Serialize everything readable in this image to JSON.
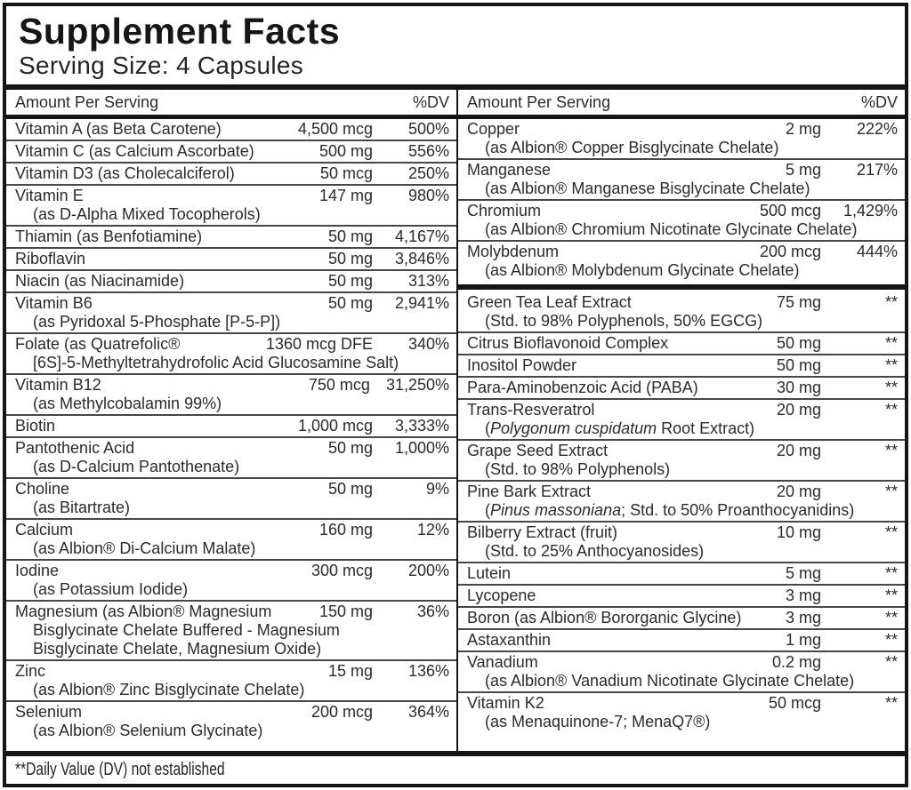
{
  "title": "Supplement Facts",
  "serving_size": "Serving Size: 4 Capsules",
  "column_header": {
    "amount": "Amount Per Serving",
    "dv": "%DV"
  },
  "footnote": "**Daily Value (DV) not established",
  "colors": {
    "border": "#151515",
    "text": "#2b2b2b",
    "separator": "#474747",
    "background": "#ffffff"
  },
  "columns": [
    {
      "rows": [
        {
          "name": "Vitamin A (as Beta Carotene)",
          "amount": "4,500 mcg",
          "dv": "500%"
        },
        {
          "name": "Vitamin C (as Calcium Ascorbate)",
          "amount": "500 mg",
          "dv": "556%"
        },
        {
          "name": "Vitamin D3 (as Cholecalciferol)",
          "amount": "50 mcg",
          "dv": "250%"
        },
        {
          "name": "Vitamin E",
          "amount": "147 mg",
          "dv": "980%",
          "sub": [
            [
              {
                "text": "(as D-Alpha Mixed Tocopherols)"
              }
            ]
          ]
        },
        {
          "name": "Thiamin (as Benfotiamine)",
          "amount": "50 mg",
          "dv": "4,167%"
        },
        {
          "name": "Riboflavin",
          "amount": "50 mg",
          "dv": "3,846%"
        },
        {
          "name": "Niacin (as Niacinamide)",
          "amount": "50 mg",
          "dv": "313%"
        },
        {
          "name": "Vitamin B6",
          "amount": "50 mg",
          "dv": "2,941%",
          "sub": [
            [
              {
                "text": "(as Pyridoxal 5-Phosphate [P-5-P])"
              }
            ]
          ]
        },
        {
          "name": "Folate (as Quatrefolic®",
          "amount": "1360 mcg DFE",
          "dv": "340%",
          "sub": [
            [
              {
                "text": "[6S]-5-Methyltetrahydrofolic Acid Glucosamine Salt)"
              }
            ]
          ]
        },
        {
          "name": "Vitamin B12",
          "amount": "750 mcg",
          "dv": "31,250%",
          "sub": [
            [
              {
                "text": "(as Methylcobalamin 99%)"
              }
            ]
          ]
        },
        {
          "name": "Biotin",
          "amount": "1,000 mcg",
          "dv": "3,333%"
        },
        {
          "name": "Pantothenic Acid",
          "amount": "50 mg",
          "dv": "1,000%",
          "sub": [
            [
              {
                "text": "(as D-Calcium Pantothenate)"
              }
            ]
          ]
        },
        {
          "name": "Choline",
          "amount": "50 mg",
          "dv": "9%",
          "sub": [
            [
              {
                "text": "(as Bitartrate)"
              }
            ]
          ]
        },
        {
          "name": "Calcium",
          "amount": "160 mg",
          "dv": "12%",
          "sub": [
            [
              {
                "text": "(as Albion® Di-Calcium Malate)"
              }
            ]
          ]
        },
        {
          "name": "Iodine",
          "amount": "300 mcg",
          "dv": "200%",
          "sub": [
            [
              {
                "text": "(as Potassium Iodide)"
              }
            ]
          ]
        },
        {
          "name": "Magnesium (as Albion® Magnesium",
          "amount": "150 mg",
          "dv": "36%",
          "sub": [
            [
              {
                "text": "Bisglycinate Chelate Buffered - Magnesium"
              }
            ],
            [
              {
                "text": "Bisglycinate Chelate, Magnesium Oxide)"
              }
            ]
          ]
        },
        {
          "name": "Zinc",
          "amount": "15 mg",
          "dv": "136%",
          "sub": [
            [
              {
                "text": "(as Albion® Zinc Bisglycinate Chelate)"
              }
            ]
          ]
        },
        {
          "name": "Selenium",
          "amount": "200 mcg",
          "dv": "364%",
          "sub": [
            [
              {
                "text": "(as Albion® Selenium Glycinate)"
              }
            ]
          ]
        }
      ]
    },
    {
      "rows": [
        {
          "name": "Copper",
          "amount": "2 mg",
          "dv": "222%",
          "sub": [
            [
              {
                "text": "(as Albion® Copper Bisglycinate Chelate)"
              }
            ]
          ]
        },
        {
          "name": "Manganese",
          "amount": "5 mg",
          "dv": "217%",
          "sub": [
            [
              {
                "text": "(as Albion® Manganese Bisglycinate Chelate)"
              }
            ]
          ]
        },
        {
          "name": "Chromium",
          "amount": "500 mcg",
          "dv": "1,429%",
          "sub": [
            [
              {
                "text": "(as Albion® Chromium Nicotinate Glycinate Chelate)"
              }
            ]
          ]
        },
        {
          "name": "Molybdenum",
          "amount": "200 mcg",
          "dv": "444%",
          "sub": [
            [
              {
                "text": "(as Albion® Molybdenum Glycinate Chelate)"
              }
            ]
          ]
        },
        {
          "divider": true
        },
        {
          "name": "Green Tea Leaf Extract",
          "amount": "75 mg",
          "dv": "**",
          "sub": [
            [
              {
                "text": "(Std. to 98% Polyphenols, 50% EGCG)"
              }
            ]
          ]
        },
        {
          "name": "Citrus Bioflavonoid Complex",
          "amount": "50 mg",
          "dv": "**"
        },
        {
          "name": "Inositol Powder",
          "amount": "50 mg",
          "dv": "**"
        },
        {
          "name": "Para-Aminobenzoic Acid (PABA)",
          "amount": "30 mg",
          "dv": "**"
        },
        {
          "name": "Trans-Resveratrol",
          "amount": "20 mg",
          "dv": "**",
          "sub": [
            [
              {
                "text": "("
              },
              {
                "text": "Polygonum cuspidatum",
                "italic": true
              },
              {
                "text": " Root Extract)"
              }
            ]
          ]
        },
        {
          "name": "Grape Seed Extract",
          "amount": "20 mg",
          "dv": "**",
          "sub": [
            [
              {
                "text": "(Std. to 98% Polyphenols)"
              }
            ]
          ]
        },
        {
          "name": "Pine Bark Extract",
          "amount": "20 mg",
          "dv": "**",
          "sub": [
            [
              {
                "text": "("
              },
              {
                "text": "Pinus massoniana",
                "italic": true
              },
              {
                "text": "; Std. to 50% Proanthocyanidins)"
              }
            ]
          ]
        },
        {
          "name": "Bilberry Extract (fruit)",
          "amount": "10 mg",
          "dv": "**",
          "sub": [
            [
              {
                "text": "(Std. to 25% Anthocyanosides)"
              }
            ]
          ]
        },
        {
          "name": "Lutein",
          "amount": "5 mg",
          "dv": "**"
        },
        {
          "name": "Lycopene",
          "amount": "3 mg",
          "dv": "**"
        },
        {
          "name": "Boron (as Albion® Bororganic Glycine)",
          "amount": "3 mg",
          "dv": "**"
        },
        {
          "name": "Astaxanthin",
          "amount": "1 mg",
          "dv": "**"
        },
        {
          "name": "Vanadium",
          "amount": "0.2 mg",
          "dv": "**",
          "sub": [
            [
              {
                "text": "(as Albion® Vanadium Nicotinate Glycinate Chelate)"
              }
            ]
          ]
        },
        {
          "name": "Vitamin K2",
          "amount": "50 mcg",
          "dv": "**",
          "sub": [
            [
              {
                "text": "(as Menaquinone-7; MenaQ7®)"
              }
            ]
          ]
        }
      ]
    }
  ]
}
